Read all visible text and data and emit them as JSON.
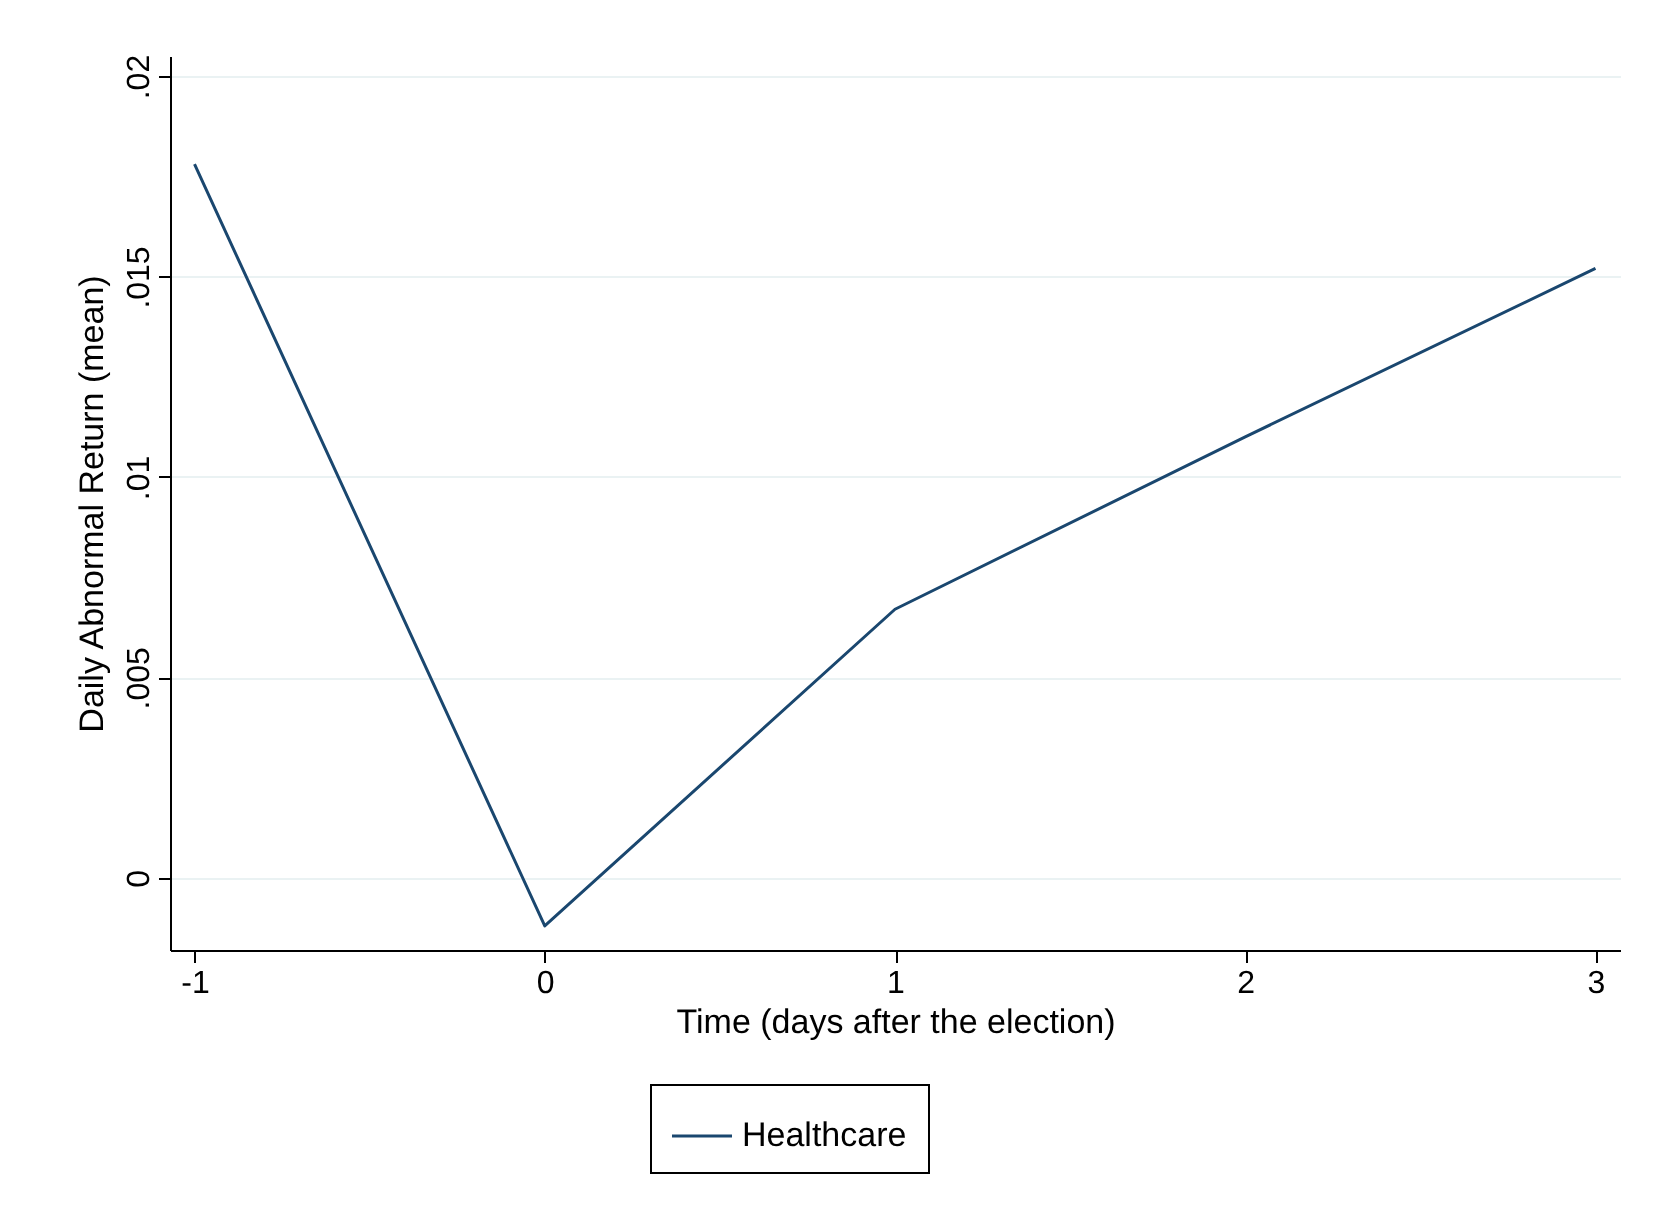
{
  "chart_data": {
    "type": "line",
    "xlabel": "Time (days after the election)",
    "ylabel": "Daily Abnormal Return (mean)",
    "x": [
      -1,
      0,
      1,
      2,
      3
    ],
    "series": [
      {
        "name": "Healthcare",
        "color": "#1a476f",
        "values": [
          0.0178,
          -0.0012,
          0.0067,
          0.011,
          0.0152
        ]
      }
    ],
    "xlim": [
      -1.07,
      3.07
    ],
    "xticks": [
      -1,
      0,
      1,
      2,
      3
    ],
    "ylim": [
      -0.0018,
      0.0205
    ],
    "yticks": [
      0,
      {
        "value": 0.005,
        "label": ".005"
      },
      {
        "value": 0.01,
        "label": ".01"
      },
      {
        "value": 0.015,
        "label": ".015"
      },
      {
        "value": 0.02,
        "label": ".02"
      }
    ],
    "grid": "y",
    "legend": "bottom",
    "marker": "none",
    "line_style": "solid"
  }
}
